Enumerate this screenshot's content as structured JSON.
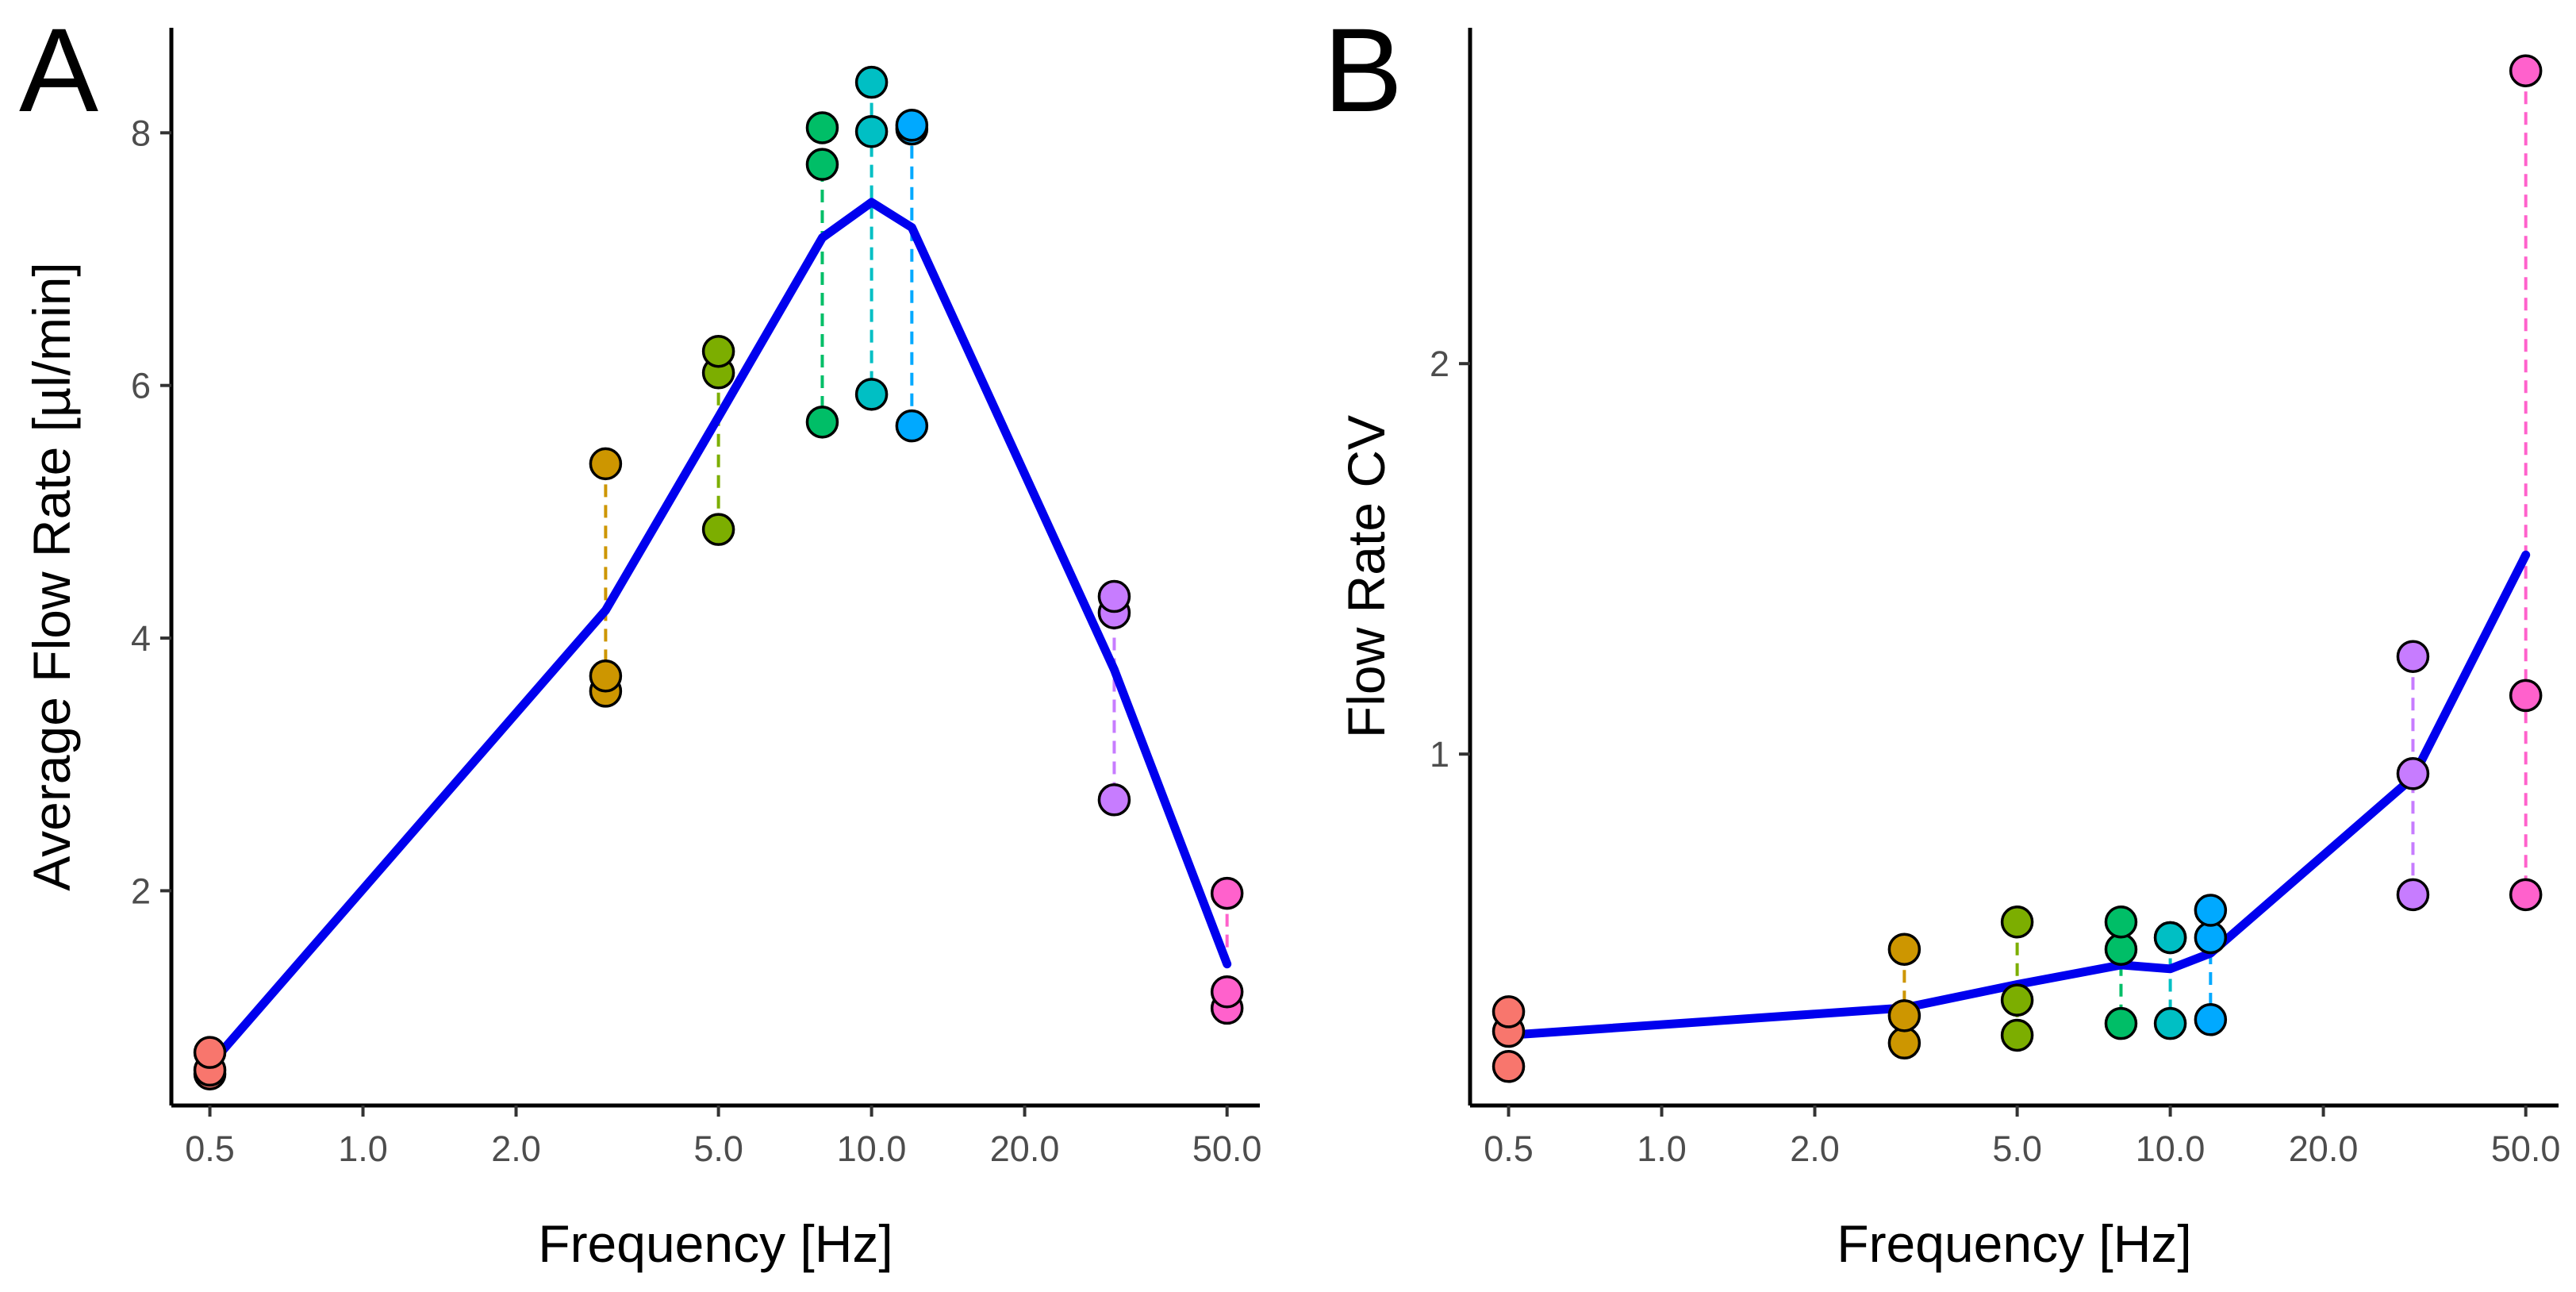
{
  "chart_data": [
    {
      "type": "scatter",
      "panel_label": "A",
      "xlabel": "Frequency [Hz]",
      "ylabel": "Average Flow Rate [µl/min]",
      "xscale": "log10",
      "xlim": [
        0.42,
        58
      ],
      "ylim": [
        0.3,
        8.8
      ],
      "xticks": [
        0.5,
        1.0,
        2.0,
        5.0,
        10.0,
        20.0,
        50.0
      ],
      "xtick_labels": [
        "0.5",
        "1.0",
        "2.0",
        "5.0",
        "10.0",
        "20.0",
        "50.0"
      ],
      "yticks": [
        2,
        4,
        6,
        8
      ],
      "ytick_labels": [
        "2",
        "4",
        "6",
        "8"
      ],
      "groups": [
        {
          "x": 0.5,
          "values": [
            0.72,
            0.58,
            0.55
          ],
          "color": "#F8766D"
        },
        {
          "x": 3,
          "values": [
            5.38,
            3.7,
            3.58
          ],
          "color": "#CD9600"
        },
        {
          "x": 5,
          "values": [
            6.27,
            6.1,
            4.86
          ],
          "color": "#7CAE00"
        },
        {
          "x": 8,
          "values": [
            8.04,
            7.75,
            5.71
          ],
          "color": "#00BE67"
        },
        {
          "x": 10,
          "values": [
            8.4,
            8.01,
            5.93
          ],
          "color": "#00BFC4"
        },
        {
          "x": 12,
          "values": [
            8.06,
            8.03,
            5.68
          ],
          "color": "#00A9FF"
        },
        {
          "x": 30,
          "values": [
            4.33,
            4.2,
            2.72
          ],
          "color": "#C77CFF"
        },
        {
          "x": 50,
          "values": [
            1.98,
            1.2,
            1.07
          ],
          "color": "#FF61CC"
        }
      ],
      "mean_line": {
        "color": "#0000EE",
        "x": [
          0.5,
          3,
          5,
          8,
          10,
          12,
          30,
          50
        ],
        "y": [
          0.62,
          4.22,
          5.75,
          7.17,
          7.45,
          7.25,
          3.75,
          1.42
        ]
      }
    },
    {
      "type": "scatter",
      "panel_label": "B",
      "xlabel": "Frequency [Hz]",
      "ylabel": "Flow Rate CV",
      "xscale": "log10",
      "xlim": [
        0.42,
        58
      ],
      "ylim": [
        0.1,
        2.85
      ],
      "xticks": [
        0.5,
        1.0,
        2.0,
        5.0,
        10.0,
        20.0,
        50.0
      ],
      "xtick_labels": [
        "0.5",
        "1.0",
        "2.0",
        "5.0",
        "10.0",
        "20.0",
        "50.0"
      ],
      "yticks": [
        1,
        2
      ],
      "ytick_labels": [
        "1",
        "2"
      ],
      "groups": [
        {
          "x": 0.5,
          "values": [
            0.34,
            0.29,
            0.2
          ],
          "color": "#F8766D"
        },
        {
          "x": 3,
          "values": [
            0.5,
            0.33,
            0.26
          ],
          "color": "#CD9600"
        },
        {
          "x": 5,
          "values": [
            0.57,
            0.37,
            0.28
          ],
          "color": "#7CAE00"
        },
        {
          "x": 8,
          "values": [
            0.57,
            0.5,
            0.31
          ],
          "color": "#00BE67"
        },
        {
          "x": 10,
          "values": [
            0.53,
            0.53,
            0.31
          ],
          "color": "#00BFC4"
        },
        {
          "x": 12,
          "values": [
            0.6,
            0.53,
            0.32
          ],
          "color": "#00A9FF"
        },
        {
          "x": 30,
          "values": [
            1.25,
            0.95,
            0.64
          ],
          "color": "#C77CFF"
        },
        {
          "x": 50,
          "values": [
            2.75,
            1.15,
            0.64
          ],
          "color": "#FF61CC"
        }
      ],
      "mean_line": {
        "color": "#0000EE",
        "x": [
          0.5,
          3,
          5,
          8,
          10,
          12,
          30,
          50
        ],
        "y": [
          0.28,
          0.35,
          0.41,
          0.46,
          0.45,
          0.49,
          0.94,
          1.51
        ]
      }
    }
  ]
}
